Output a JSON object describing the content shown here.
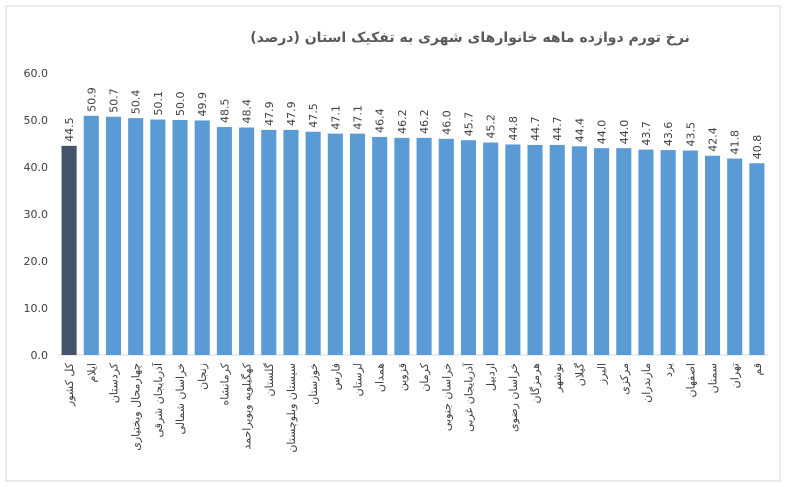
{
  "chart_data": {
    "type": "bar",
    "title": "نرخ تورم دوازده ماهه خانوارهای شهری به تفکیک استان (درصد)",
    "categories": [
      "کل کشور",
      "ایلام",
      "کردستان",
      "چهارمحال وبختیاری",
      "آذربایجان شرقی",
      "خراسان شمالی",
      "زنجان",
      "کرمانشاه",
      "کهگیلویه وبویراحمد",
      "گلستان",
      "سیستان وبلوچستان",
      "خوزستان",
      "فارس",
      "لرستان",
      "همدان",
      "قزوین",
      "کرمان",
      "خراسان جنوبی",
      "آذربایجان غربی",
      "اردبیل",
      "خراسان رضوی",
      "هرمزگان",
      "بوشهر",
      "گیلان",
      "البرز",
      "مرکزی",
      "مازندران",
      "یزد",
      "اصفهان",
      "سمنان",
      "تهران",
      "قم"
    ],
    "values": [
      44.5,
      50.9,
      50.7,
      50.4,
      50.1,
      50.0,
      49.9,
      48.5,
      48.4,
      47.9,
      47.9,
      47.5,
      47.1,
      47.1,
      46.4,
      46.2,
      46.2,
      46.0,
      45.7,
      45.2,
      44.8,
      44.7,
      44.7,
      44.4,
      44.0,
      44.0,
      43.7,
      43.6,
      43.5,
      42.4,
      41.8,
      40.8
    ],
    "value_labels": [
      "44.5",
      "50.9",
      "50.7",
      "50.4",
      "50.1",
      "50.0",
      "49.9",
      "48.5",
      "48.4",
      "47.9",
      "47.9",
      "47.5",
      "47.1",
      "47.1",
      "46.4",
      "46.2",
      "46.2",
      "46.0",
      "45.7",
      "45.2",
      "44.8",
      "44.7",
      "44.7",
      "44.4",
      "44.0",
      "44.0",
      "43.7",
      "43.6",
      "43.5",
      "42.4",
      "41.8",
      "40.8"
    ],
    "colors": [
      "#44546a",
      "#5b9bd5",
      "#5b9bd5",
      "#5b9bd5",
      "#5b9bd5",
      "#5b9bd5",
      "#5b9bd5",
      "#5b9bd5",
      "#5b9bd5",
      "#5b9bd5",
      "#5b9bd5",
      "#5b9bd5",
      "#5b9bd5",
      "#5b9bd5",
      "#5b9bd5",
      "#5b9bd5",
      "#5b9bd5",
      "#5b9bd5",
      "#5b9bd5",
      "#5b9bd5",
      "#5b9bd5",
      "#5b9bd5",
      "#5b9bd5",
      "#5b9bd5",
      "#5b9bd5",
      "#5b9bd5",
      "#5b9bd5",
      "#5b9bd5",
      "#5b9bd5",
      "#5b9bd5",
      "#5b9bd5",
      "#5b9bd5"
    ],
    "ylim": [
      0,
      60
    ],
    "yticks": [
      {
        "value": 0,
        "label": "0.0"
      },
      {
        "value": 10,
        "label": "10.0"
      },
      {
        "value": 20,
        "label": "20.0"
      },
      {
        "value": 30,
        "label": "30.0"
      },
      {
        "value": 40,
        "label": "40.0"
      },
      {
        "value": 50,
        "label": "50.0"
      },
      {
        "value": 60,
        "label": "60.0"
      }
    ],
    "grid": false
  }
}
